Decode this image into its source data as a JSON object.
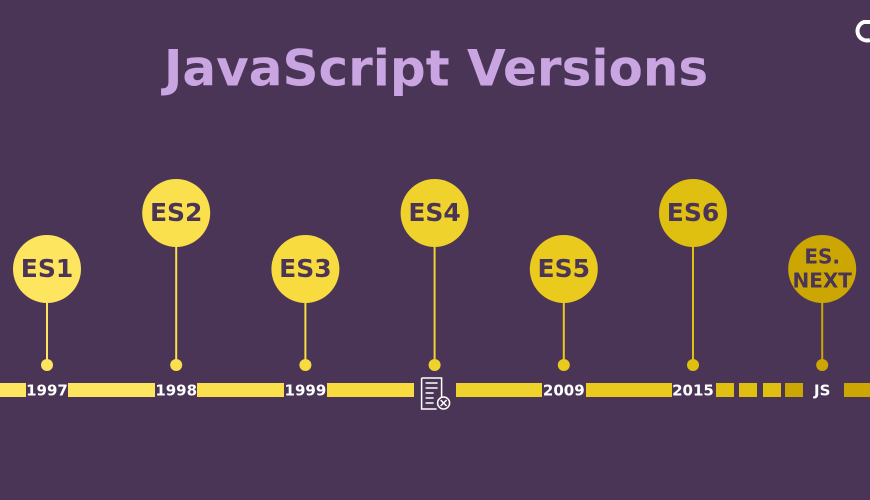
{
  "header": {
    "title": "JavaScript Versions"
  },
  "milestones": [
    {
      "label": "ES1",
      "year": "1997"
    },
    {
      "label": "ES2",
      "year": "1998"
    },
    {
      "label": "ES3",
      "year": "1999"
    },
    {
      "label": "ES4",
      "year": null
    },
    {
      "label": "ES5",
      "year": "2009"
    },
    {
      "label": "ES6",
      "year": "2015"
    },
    {
      "label": [
        "ES.",
        "NEXT"
      ],
      "year": "JS"
    }
  ]
}
